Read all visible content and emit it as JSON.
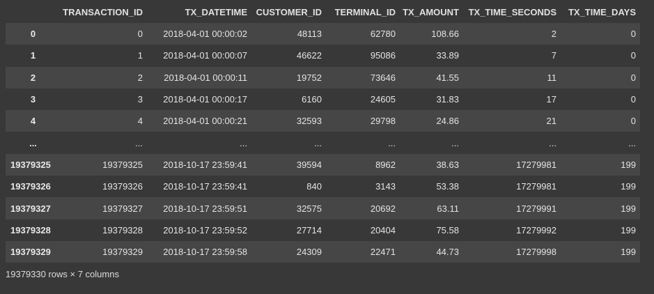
{
  "columns": [
    "",
    "TRANSACTION_ID",
    "TX_DATETIME",
    "CUSTOMER_ID",
    "TERMINAL_ID",
    "TX_AMOUNT",
    "TX_TIME_SECONDS",
    "TX_TIME_DAYS"
  ],
  "rows": [
    {
      "index": "0",
      "cells": [
        "0",
        "2018-04-01 00:00:02",
        "48113",
        "62780",
        "108.66",
        "2",
        "0"
      ]
    },
    {
      "index": "1",
      "cells": [
        "1",
        "2018-04-01 00:00:07",
        "46622",
        "95086",
        "33.89",
        "7",
        "0"
      ]
    },
    {
      "index": "2",
      "cells": [
        "2",
        "2018-04-01 00:00:11",
        "19752",
        "73646",
        "41.55",
        "11",
        "0"
      ]
    },
    {
      "index": "3",
      "cells": [
        "3",
        "2018-04-01 00:00:17",
        "6160",
        "24605",
        "31.83",
        "17",
        "0"
      ]
    },
    {
      "index": "4",
      "cells": [
        "4",
        "2018-04-01 00:00:21",
        "32593",
        "29798",
        "24.86",
        "21",
        "0"
      ]
    },
    {
      "index": "...",
      "cells": [
        "...",
        "...",
        "...",
        "...",
        "...",
        "...",
        "..."
      ]
    },
    {
      "index": "19379325",
      "cells": [
        "19379325",
        "2018-10-17 23:59:41",
        "39594",
        "8962",
        "38.63",
        "17279981",
        "199"
      ]
    },
    {
      "index": "19379326",
      "cells": [
        "19379326",
        "2018-10-17 23:59:41",
        "840",
        "3143",
        "53.38",
        "17279981",
        "199"
      ]
    },
    {
      "index": "19379327",
      "cells": [
        "19379327",
        "2018-10-17 23:59:51",
        "32575",
        "20692",
        "63.11",
        "17279991",
        "199"
      ]
    },
    {
      "index": "19379328",
      "cells": [
        "19379328",
        "2018-10-17 23:59:52",
        "27714",
        "20404",
        "75.58",
        "17279992",
        "199"
      ]
    },
    {
      "index": "19379329",
      "cells": [
        "19379329",
        "2018-10-17 23:59:58",
        "24309",
        "22471",
        "44.73",
        "17279998",
        "199"
      ]
    }
  ],
  "footer": "19379330 rows × 7 columns"
}
